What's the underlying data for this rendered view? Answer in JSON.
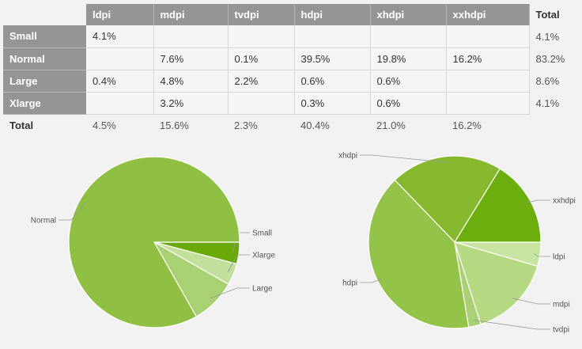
{
  "table": {
    "columns": [
      "ldpi",
      "mdpi",
      "tvdpi",
      "hdpi",
      "xhdpi",
      "xxhdpi"
    ],
    "total_label": "Total",
    "rows": [
      {
        "label": "Small",
        "cells": [
          "4.1%",
          "",
          "",
          "",
          "",
          ""
        ],
        "total": "4.1%"
      },
      {
        "label": "Normal",
        "cells": [
          "",
          "7.6%",
          "0.1%",
          "39.5%",
          "19.8%",
          "16.2%"
        ],
        "total": "83.2%"
      },
      {
        "label": "Large",
        "cells": [
          "0.4%",
          "4.8%",
          "2.2%",
          "0.6%",
          "0.6%",
          ""
        ],
        "total": "8.6%"
      },
      {
        "label": "Xlarge",
        "cells": [
          "",
          "3.2%",
          "",
          "0.3%",
          "0.6%",
          ""
        ],
        "total": "4.1%"
      }
    ],
    "footer": {
      "label": "Total",
      "cells": [
        "4.5%",
        "15.6%",
        "2.3%",
        "40.4%",
        "21.0%",
        "16.2%"
      ]
    }
  },
  "chart_data": [
    {
      "type": "pie",
      "categories": [
        "Small",
        "Normal",
        "Large",
        "Xlarge"
      ],
      "values": [
        4.1,
        83.2,
        8.6,
        4.1
      ]
    },
    {
      "type": "pie",
      "categories": [
        "ldpi",
        "mdpi",
        "tvdpi",
        "hdpi",
        "xhdpi",
        "xxhdpi"
      ],
      "values": [
        4.5,
        15.6,
        2.3,
        40.4,
        21.0,
        16.2
      ]
    }
  ],
  "colors": {
    "Normal": "#8fc043",
    "Small": "#69aa0a",
    "Xlarge": "#c2df9c",
    "Large": "#a8d173",
    "xhdpi": "#87b92e",
    "xxhdpi": "#6cae0d",
    "ldpi": "#c8e4a1",
    "mdpi": "#b5da83",
    "tvdpi": "#a9d074",
    "hdpi": "#93c349",
    "label_line": "#999999"
  }
}
